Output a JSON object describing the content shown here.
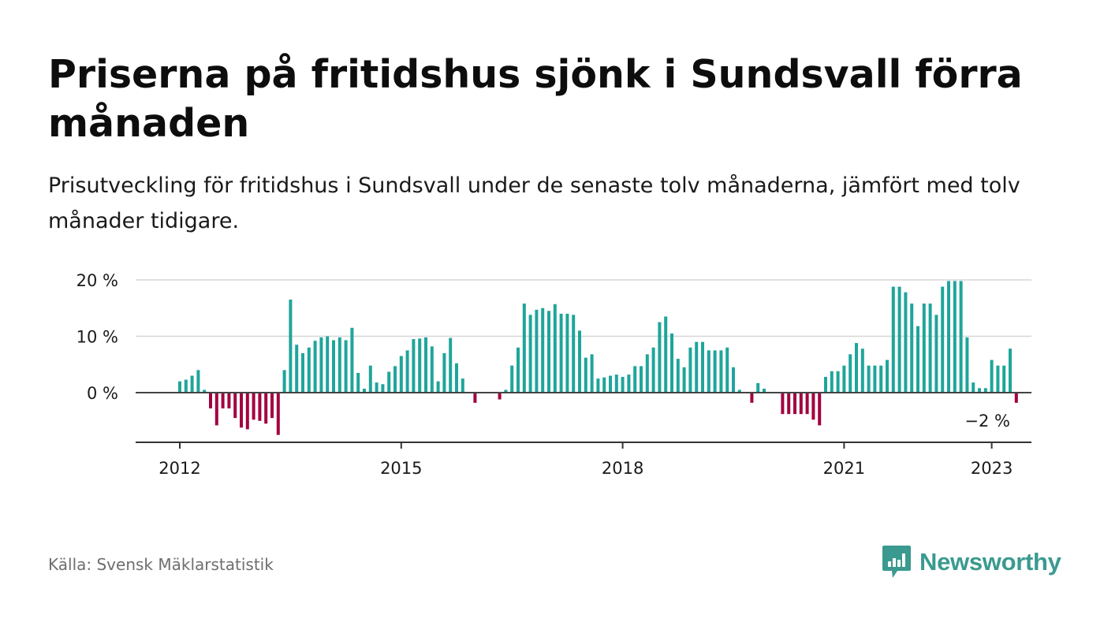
{
  "header": {
    "title": "Priserna på fritidshus sjönk i Sundsvall förra månaden",
    "subtitle": "Prisutveckling för fritidshus i Sundsvall under de senaste tolv månaderna, jämfört med tolv månader tidigare."
  },
  "footer": {
    "source": "Källa: Svensk Mäklarstatistik",
    "brand": "Newsworthy"
  },
  "colors": {
    "positive": "#1fa59a",
    "negative": "#a3003f",
    "brand": "#3a9a8f"
  },
  "chart_data": {
    "type": "bar",
    "y_ticks": [
      {
        "value": 20,
        "label": "20 %"
      },
      {
        "value": 10,
        "label": "10 %"
      },
      {
        "value": 0,
        "label": "0 %"
      }
    ],
    "x_ticks": [
      "2012",
      "2015",
      "2018",
      "2021",
      "2023"
    ],
    "ylim": [
      -8,
      20
    ],
    "grid": true,
    "end_label": "−2 %",
    "start_month": "2012-01",
    "values": [
      2,
      2.3,
      3,
      4,
      0.5,
      -2.8,
      -5.8,
      -2.8,
      -2.8,
      -4.5,
      -6.2,
      -6.5,
      -4.8,
      -5,
      -5.5,
      -4.5,
      -7.5,
      4,
      16.5,
      8.5,
      7,
      8,
      9.2,
      9.8,
      10,
      9.3,
      9.8,
      9.3,
      11.5,
      3.5,
      0.7,
      4.8,
      1.8,
      1.5,
      3.7,
      4.7,
      6.5,
      7.5,
      9.5,
      9.6,
      9.8,
      8.2,
      2,
      7,
      9.7,
      5.2,
      2.5,
      0,
      -1.8,
      0,
      0,
      0,
      -1.2,
      0.5,
      4.8,
      8,
      15.8,
      13.8,
      14.7,
      15,
      14.5,
      15.7,
      14,
      14,
      13.8,
      11,
      6.2,
      6.8,
      2.5,
      2.7,
      3,
      3.2,
      2.8,
      3.2,
      4.7,
      4.7,
      6.8,
      8,
      12.5,
      13.5,
      10.5,
      6,
      4.5,
      8,
      9,
      9,
      7.5,
      7.5,
      7.5,
      8,
      4.5,
      0.5,
      0,
      -1.8,
      1.7,
      0.7,
      0,
      0,
      -3.8,
      -3.8,
      -3.8,
      -3.8,
      -3.8,
      -4.8,
      -5.8,
      2.8,
      3.8,
      3.8,
      4.8,
      6.8,
      8.8,
      7.8,
      4.8,
      4.8,
      4.8,
      5.8,
      18.8,
      18.8,
      17.8,
      15.8,
      11.8,
      15.8,
      15.8,
      13.8,
      18.8,
      19.8,
      19.8,
      19.8,
      9.8,
      1.8,
      0.8,
      0.8,
      5.8,
      4.8,
      4.8,
      7.8,
      -1.8
    ]
  }
}
